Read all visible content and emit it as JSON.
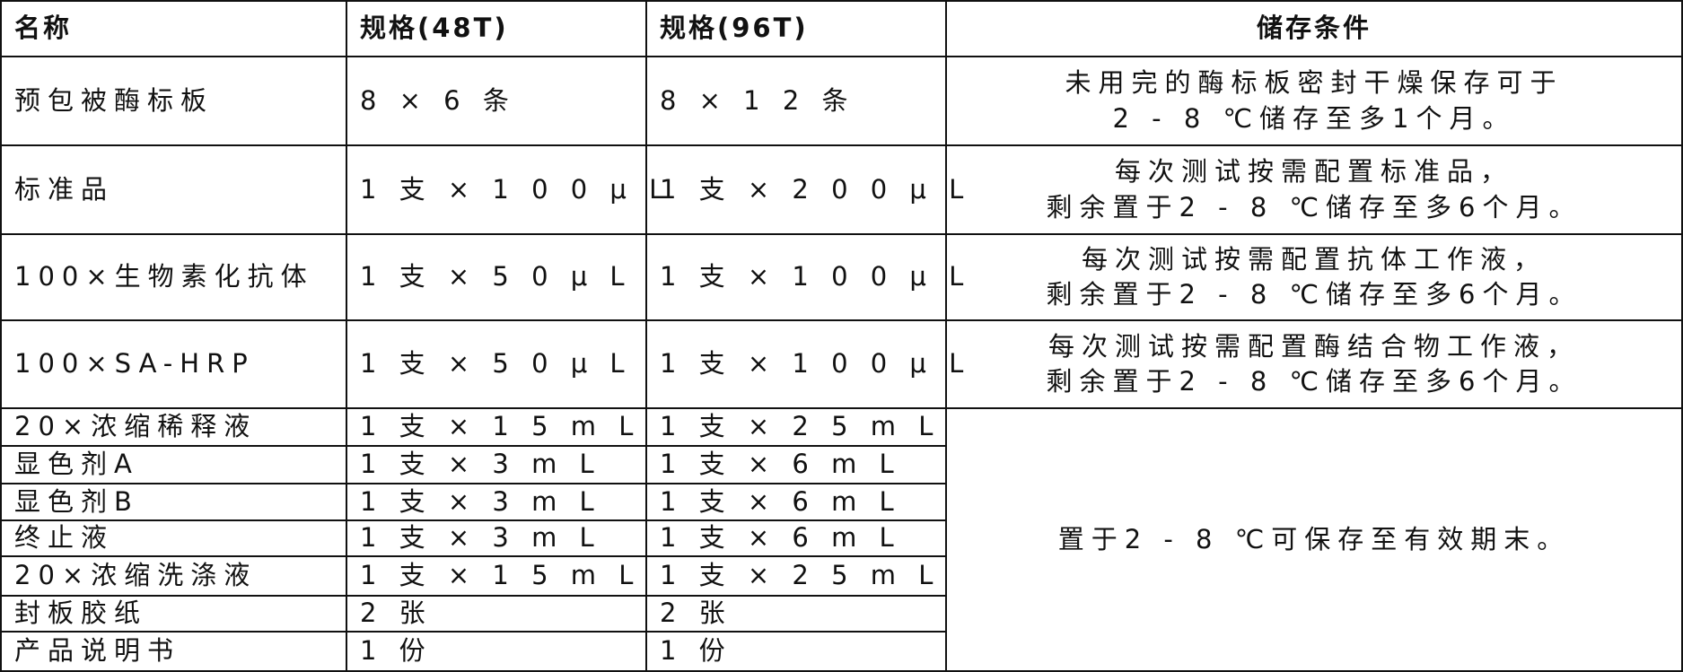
{
  "headers": [
    "名称",
    "规格(48T)",
    "规格(96T)",
    "储存条件"
  ],
  "rows": [
    {
      "name": "预包被酶标板",
      "spec48": "8 × 6 条",
      "spec96": "8 × 1 2 条",
      "storage": [
        "未用完的酶标板密封干燥保存可于",
        "2 - 8 ℃储存至多1个月。"
      ]
    },
    {
      "name": "标准品",
      "spec48": "1 支 × 1 0 0 μ L",
      "spec96": "1 支 × 2 0 0 μ L",
      "storage": [
        "每次测试按需配置标准品，",
        "剩余置于2 - 8 ℃储存至多6个月。"
      ]
    },
    {
      "name": "100×生物素化抗体",
      "spec48": "1 支 × 5 0 μ L",
      "spec96": "1 支 × 1 0 0 μ L",
      "storage": [
        "每次测试按需配置抗体工作液，",
        "剩余置于2 - 8 ℃储存至多6个月。"
      ]
    },
    {
      "name": "100×SA-HRP",
      "spec48": "1 支 × 5 0 μ L",
      "spec96": "1 支 × 1 0 0 μ L",
      "storage": [
        "每次测试按需配置酶结合物工作液，",
        "剩余置于2 - 8 ℃储存至多6个月。"
      ]
    },
    {
      "name": "20×浓缩稀释液",
      "spec48": "1 支 × 1 5 m L",
      "spec96": "1 支 × 2 5 m L"
    },
    {
      "name": "显色剂A",
      "spec48": "1 支 × 3 m L",
      "spec96": "1 支 × 6 m L"
    },
    {
      "name": "显色剂B",
      "spec48": "1 支 × 3 m L",
      "spec96": "1 支 × 6 m L"
    },
    {
      "name": "终止液",
      "spec48": "1 支 × 3 m L",
      "spec96": "1 支 × 6 m L"
    },
    {
      "name": "20×浓缩洗涤液",
      "spec48": "1 支 × 1 5 m L",
      "spec96": "1 支 × 2 5 m L"
    },
    {
      "name": "封板胶纸",
      "spec48": "2 张",
      "spec96": "2 张"
    },
    {
      "name": "产品说明书",
      "spec48": "1 份",
      "spec96": "1 份"
    }
  ],
  "merged_storage": "置于2 - 8 ℃可保存至有效期末。"
}
